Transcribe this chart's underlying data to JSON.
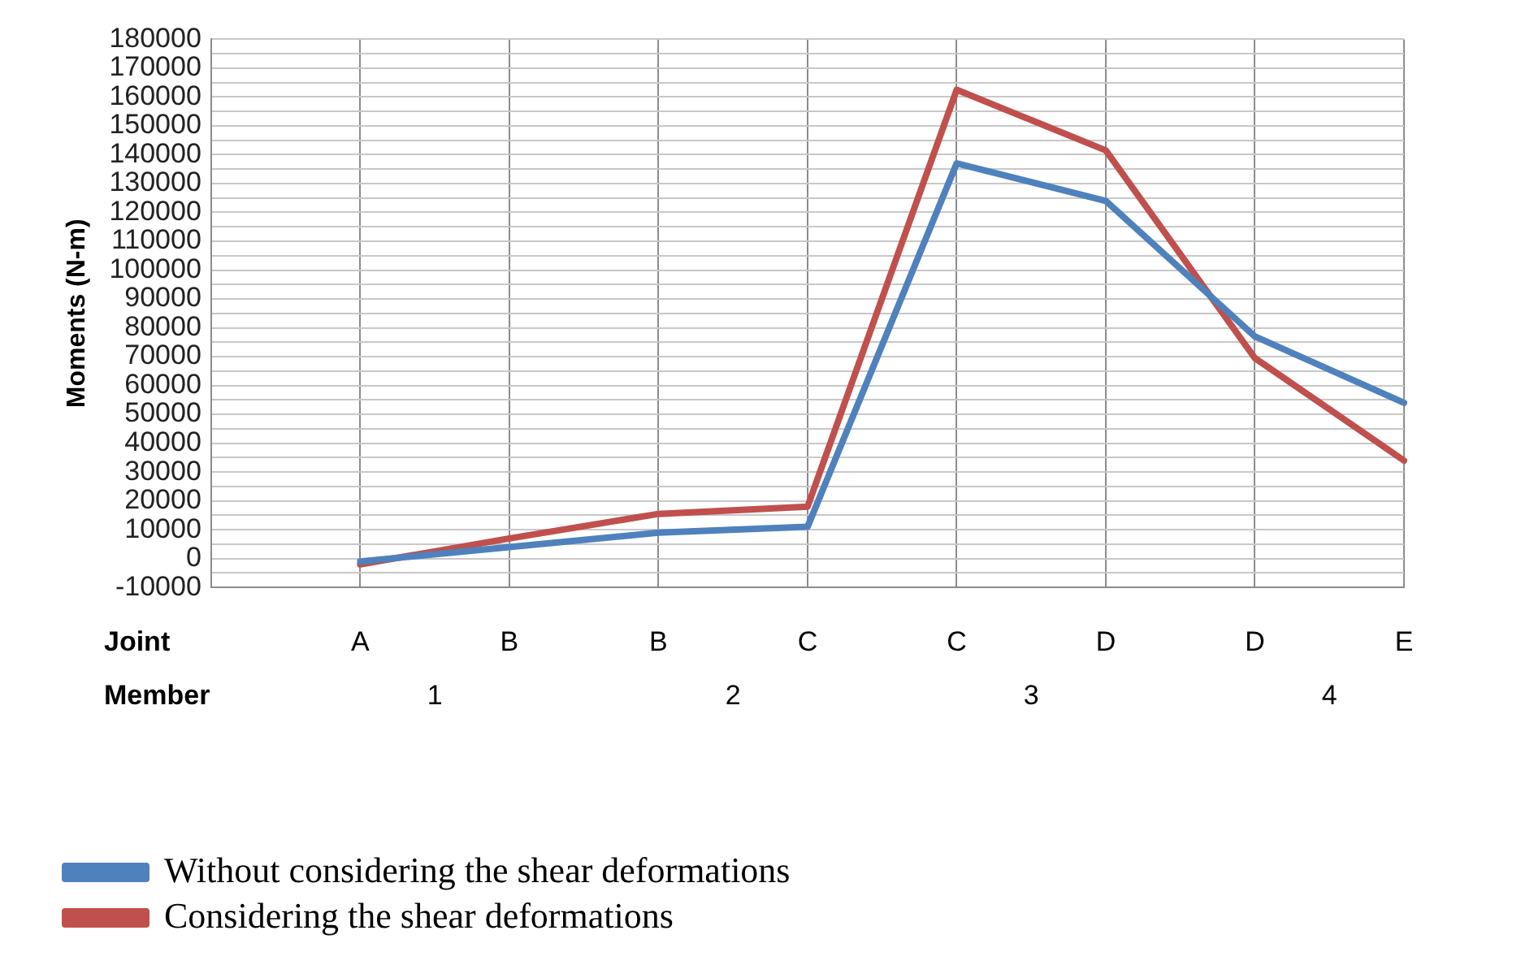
{
  "chart_data": {
    "type": "line",
    "ylabel": "Moments (N-m)",
    "categories": [
      null,
      "A",
      "B",
      "B",
      "C",
      "C",
      "D",
      "D",
      "E"
    ],
    "series": [
      {
        "name": "Without considering the shear deformations",
        "color": "#4f81bd",
        "values": [
          null,
          -1000,
          4000,
          9000,
          11000,
          137000,
          124000,
          77000,
          54000
        ]
      },
      {
        "name": "Considering the shear deformations",
        "color": "#c0504d",
        "values": [
          null,
          -2000,
          7000,
          15500,
          18000,
          162500,
          141500,
          69500,
          34000
        ]
      }
    ],
    "ylim": [
      -10000,
      180000
    ],
    "yticks": [
      -10000,
      {
        "value": -5000,
        "label": null
      },
      0,
      {
        "value": 5000,
        "label": null
      },
      10000,
      {
        "value": 15000,
        "label": null
      },
      20000,
      {
        "value": 25000,
        "label": null
      },
      30000,
      {
        "value": 35000,
        "label": null
      },
      40000,
      {
        "value": 45000,
        "label": null
      },
      50000,
      {
        "value": 55000,
        "label": null
      },
      60000,
      {
        "value": 65000,
        "label": null
      },
      70000,
      {
        "value": 75000,
        "label": null
      },
      80000,
      {
        "value": 85000,
        "label": null
      },
      90000,
      {
        "value": 95000,
        "label": null
      },
      100000,
      {
        "value": 105000,
        "label": null
      },
      110000,
      {
        "value": 115000,
        "label": null
      },
      120000,
      {
        "value": 125000,
        "label": null
      },
      130000,
      {
        "value": 135000,
        "label": null
      },
      140000,
      {
        "value": 145000,
        "label": null
      },
      150000,
      {
        "value": 155000,
        "label": null
      },
      160000,
      {
        "value": 165000,
        "label": null
      },
      170000,
      {
        "value": 175000,
        "label": null
      },
      180000
    ],
    "annotations": [
      "Joint",
      "Member",
      "1",
      "2",
      "3",
      "4"
    ],
    "grid": true,
    "legend": "bottom left",
    "marker": "none",
    "line_style": "solid"
  }
}
